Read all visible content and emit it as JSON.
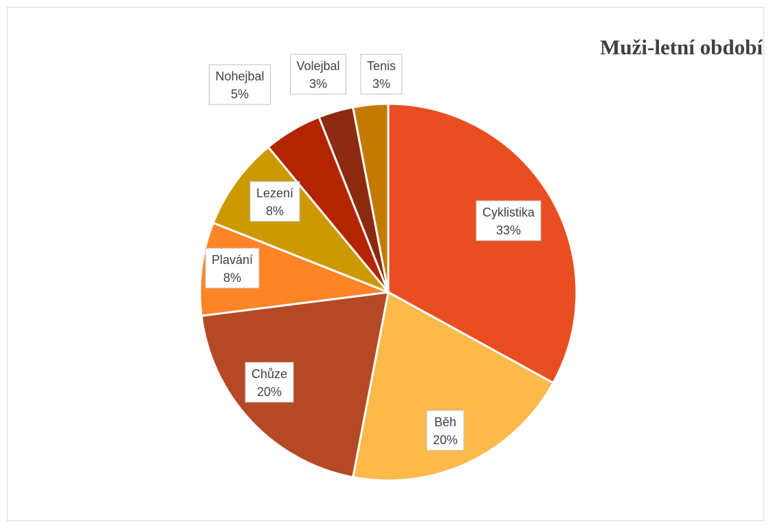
{
  "chart_data": {
    "type": "pie",
    "title": "Muži-letní období",
    "categories": [
      "Cyklistika",
      "Běh",
      "Chůze",
      "Plavání",
      "Lezení",
      "Nohejbal",
      "Volejbal",
      "Tenis"
    ],
    "values": [
      33,
      20,
      20,
      8,
      8,
      5,
      3,
      3
    ],
    "value_labels": [
      "33%",
      "20%",
      "20%",
      "8%",
      "8%",
      "5%",
      "3%",
      "3%"
    ],
    "colors": [
      "#e84e22",
      "#fdb94a",
      "#b54925",
      "#fd8427",
      "#cc9900",
      "#b32400",
      "#8c2a10",
      "#c47a00"
    ]
  }
}
